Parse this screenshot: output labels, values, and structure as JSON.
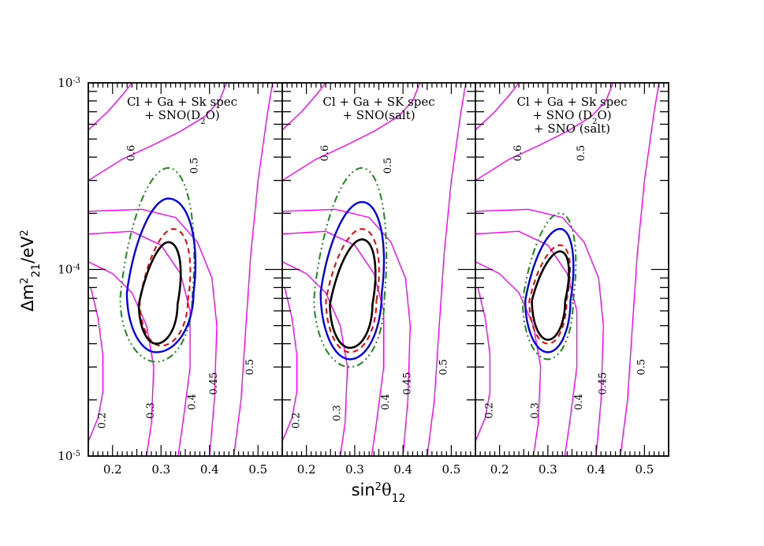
{
  "chart_data": {
    "type": "contour",
    "x_axis": {
      "label": "sin²θ₁₂",
      "label_main": "sin",
      "label_sup": "2",
      "label_theta": "θ",
      "label_sub": "12",
      "range": [
        0.15,
        0.55
      ],
      "tick_values": [
        0.2,
        0.3,
        0.4,
        0.5
      ],
      "tick_labels": [
        "0.2",
        "0.3",
        "0.4",
        "0.5"
      ]
    },
    "y_axis": {
      "label": "Δm²₂₁/eV²",
      "label_delta": "Δm",
      "label_sup": "2",
      "label_sub": "21",
      "label_unit": "/eV",
      "label_unit_sup": "2",
      "scale": "log",
      "range": [
        1e-05,
        0.001
      ],
      "tick_labels": [
        {
          "base": "10",
          "exp": "-3",
          "value": 0.001
        },
        {
          "base": "10",
          "exp": "-4",
          "value": 0.0001
        },
        {
          "base": "10",
          "exp": "-5",
          "value": 1e-05
        }
      ]
    },
    "panels": [
      {
        "title_lines": [
          "Cl + Ga + Sk spec",
          "+ SNO(D₂O)"
        ],
        "title_html": [
          "Cl + Ga + Sk spec",
          "+ SNO(D<tspan baseline-shift='sub' font-size='10'>2</tspan>O)"
        ],
        "regions": [
          {
            "name": "outer-dashdot",
            "color": "#1a8a1a",
            "center": [
              0.29,
              7e-05
            ],
            "sx_left": 0.135,
            "sx_right": 0.135,
            "ylo": 3.2e-05,
            "yhi": 0.00035
          },
          {
            "name": "blue-solid",
            "color": "#0000ee",
            "center": [
              0.29,
              7.5e-05
            ],
            "sx_left": 0.11,
            "sx_right": 0.14,
            "ylo": 3.6e-05,
            "yhi": 0.00024
          },
          {
            "name": "red-dashed",
            "color": "#ee0000",
            "center": [
              0.3,
              6.8e-05
            ],
            "sx_left": 0.08,
            "sx_right": 0.1,
            "ylo": 3.9e-05,
            "yhi": 0.000165
          },
          {
            "name": "black-solid",
            "color": "#000000",
            "center": [
              0.29,
              6.5e-05
            ],
            "sx_left": 0.065,
            "sx_right": 0.08,
            "ylo": 4e-05,
            "yhi": 0.00014
          }
        ],
        "contour_labels": [
          {
            "text": "0.6",
            "x": 0.245,
            "y": 0.00042
          },
          {
            "text": "0.5",
            "x": 0.375,
            "y": 0.00036
          },
          {
            "text": "0.2",
            "x": 0.185,
            "y": 1.55e-05
          },
          {
            "text": "0.3",
            "x": 0.285,
            "y": 1.75e-05
          },
          {
            "text": "0.4",
            "x": 0.37,
            "y": 1.95e-05
          },
          {
            "text": "0.45",
            "x": 0.415,
            "y": 2.45e-05
          },
          {
            "text": "0.5",
            "x": 0.49,
            "y": 3e-05
          }
        ]
      },
      {
        "title_lines": [
          "Cl + Ga + SK spec",
          "+ SNO(salt)"
        ],
        "title_html": [
          "Cl + Ga + SK spec",
          "+ SNO(salt)"
        ],
        "regions": [
          {
            "name": "outer-dashdot",
            "color": "#1a8a1a",
            "center": [
              0.29,
              7e-05
            ],
            "sx_left": 0.135,
            "sx_right": 0.13,
            "ylo": 3e-05,
            "yhi": 0.00035
          },
          {
            "name": "blue-solid",
            "color": "#0000ee",
            "center": [
              0.29,
              7.5e-05
            ],
            "sx_left": 0.11,
            "sx_right": 0.12,
            "ylo": 3.3e-05,
            "yhi": 0.00023
          },
          {
            "name": "red-dashed",
            "color": "#ee0000",
            "center": [
              0.29,
              6.8e-05
            ],
            "sx_left": 0.09,
            "sx_right": 0.1,
            "ylo": 3.6e-05,
            "yhi": 0.000165
          },
          {
            "name": "black-solid",
            "color": "#000000",
            "center": [
              0.29,
              6.5e-05
            ],
            "sx_left": 0.075,
            "sx_right": 0.085,
            "ylo": 3.8e-05,
            "yhi": 0.000145
          }
        ],
        "contour_labels": [
          {
            "text": "0.6",
            "x": 0.245,
            "y": 0.00042
          },
          {
            "text": "0.5",
            "x": 0.375,
            "y": 0.00036
          },
          {
            "text": "0.2",
            "x": 0.185,
            "y": 1.55e-05
          },
          {
            "text": "0.3",
            "x": 0.27,
            "y": 1.7e-05
          },
          {
            "text": "0.4",
            "x": 0.37,
            "y": 1.95e-05
          },
          {
            "text": "0.45",
            "x": 0.415,
            "y": 2.45e-05
          },
          {
            "text": "0.5",
            "x": 0.49,
            "y": 3e-05
          }
        ]
      },
      {
        "title_lines": [
          "Cl + Ga + Sk spec",
          "+ SNO (D₂O)",
          "+ SNO (salt)"
        ],
        "title_html": [
          "Cl + Ga + Sk spec",
          "+ SNO (D<tspan baseline-shift='sub' font-size='10'>2</tspan>O)",
          "+ SNO (salt)"
        ],
        "regions": [
          {
            "name": "outer-dashdot",
            "color": "#1a8a1a",
            "center": [
              0.3,
              6.8e-05
            ],
            "sx_left": 0.095,
            "sx_right": 0.095,
            "ylo": 3.3e-05,
            "yhi": 0.0002
          },
          {
            "name": "blue-solid",
            "color": "#0000ee",
            "center": [
              0.3,
              6.8e-05
            ],
            "sx_left": 0.085,
            "sx_right": 0.085,
            "ylo": 3.6e-05,
            "yhi": 0.000165
          },
          {
            "name": "red-dashed",
            "color": "#ee0000",
            "center": [
              0.3,
              6.8e-05
            ],
            "sx_left": 0.07,
            "sx_right": 0.07,
            "ylo": 4e-05,
            "yhi": 0.000135
          },
          {
            "name": "black-solid",
            "color": "#000000",
            "center": [
              0.3,
              6.8e-05
            ],
            "sx_left": 0.06,
            "sx_right": 0.065,
            "ylo": 4.2e-05,
            "yhi": 0.000125
          }
        ],
        "contour_labels": [
          {
            "text": "0.6",
            "x": 0.245,
            "y": 0.00042
          },
          {
            "text": "0.5",
            "x": 0.375,
            "y": 0.00042
          },
          {
            "text": "0.2",
            "x": 0.185,
            "y": 1.75e-05
          },
          {
            "text": "0.3",
            "x": 0.28,
            "y": 1.75e-05
          },
          {
            "text": "0.4",
            "x": 0.37,
            "y": 1.95e-05
          },
          {
            "text": "0.45",
            "x": 0.42,
            "y": 2.45e-05
          },
          {
            "text": "0.5",
            "x": 0.5,
            "y": 3e-05
          }
        ]
      }
    ],
    "grid": false,
    "colors": {
      "contour_lines": "#ff00ff",
      "dashdot_region": "#1a8a1a",
      "blue_region": "#0000ee",
      "red_region": "#ee0000",
      "black_region": "#000000"
    }
  }
}
